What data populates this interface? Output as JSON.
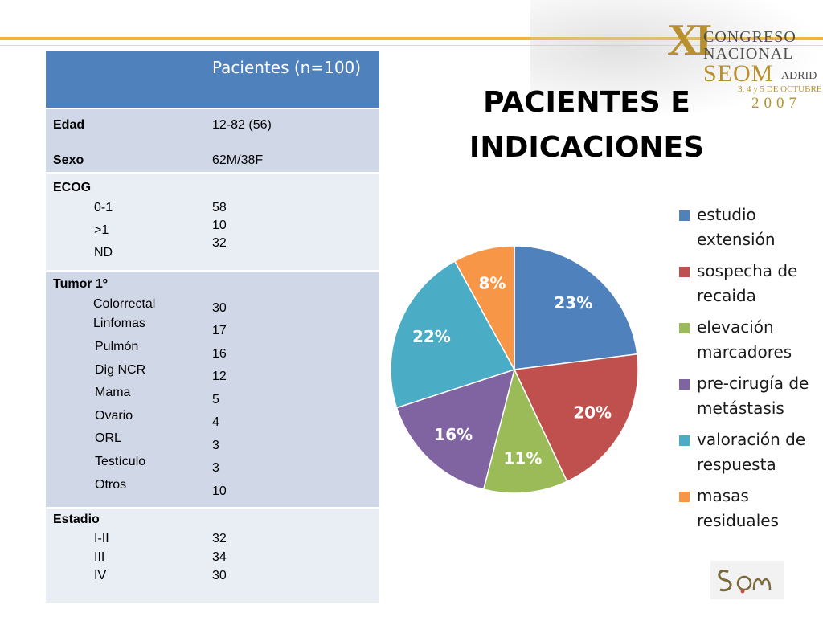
{
  "header": {
    "numeral": "XI",
    "line1": "CONGRESO",
    "line2": "NACIONAL",
    "brand": "SEOM",
    "city": "ADRID",
    "dates": "3, 4 y 5 DE OCTUBRE",
    "year": "2007",
    "accent_color": "#f2b632"
  },
  "title": "PACIENTES E INDICACIONES",
  "table": {
    "header": "Pacientes (n=100)",
    "header_color": "#4f81bd",
    "edad": {
      "label": "Edad",
      "value": "12-82 (56)"
    },
    "sexo": {
      "label": "Sexo",
      "value": "62M/38F"
    },
    "ecog": {
      "label": "ECOG",
      "rows": [
        {
          "label": "0-1",
          "value": "58"
        },
        {
          "label": ">1",
          "value": "10"
        },
        {
          "label": "ND",
          "value": "32"
        }
      ]
    },
    "tumor": {
      "label": "Tumor 1º",
      "rows": [
        {
          "label": "Colorrectal",
          "value": "30"
        },
        {
          "label": "Linfomas",
          "value": "17"
        },
        {
          "label": "Pulmón",
          "value": "16"
        },
        {
          "label": "Dig NCR",
          "value": "12"
        },
        {
          "label": "Mama",
          "value": "5"
        },
        {
          "label": "Ovario",
          "value": "4"
        },
        {
          "label": "ORL",
          "value": "3"
        },
        {
          "label": "Testículo",
          "value": "3"
        },
        {
          "label": "Otros",
          "value": "10"
        }
      ]
    },
    "estadio": {
      "label": "Estadio",
      "rows": [
        {
          "label": "I-II",
          "value": "32"
        },
        {
          "label": "III",
          "value": "34"
        },
        {
          "label": "IV",
          "value": "30"
        }
      ]
    }
  },
  "chart_data": {
    "type": "pie",
    "title": "",
    "legend_position": "right",
    "slices": [
      {
        "name": "estudio extensión",
        "value": 23,
        "label": "23%",
        "color": "#4f81bd"
      },
      {
        "name": "sospecha de recaida",
        "value": 20,
        "label": "20%",
        "color": "#c0504d"
      },
      {
        "name": "elevación marcadores",
        "value": 11,
        "label": "11%",
        "color": "#9bbb59"
      },
      {
        "name": "pre-cirugía de metástasis",
        "value": 16,
        "label": "16%",
        "color": "#8064a2"
      },
      {
        "name": "valoración de respuesta",
        "value": 22,
        "label": "22%",
        "color": "#4bacc6"
      },
      {
        "name": "masas residuales",
        "value": 8,
        "label": "8%",
        "color": "#f79646"
      }
    ]
  }
}
